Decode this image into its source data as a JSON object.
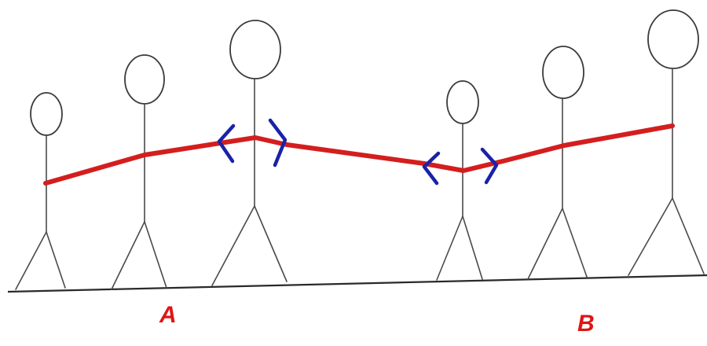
{
  "colors": {
    "rope": "#d41e1e",
    "arrows": "#1a22a8",
    "labels": "#e01414"
  },
  "labels": {
    "a": "A",
    "b": "B"
  }
}
